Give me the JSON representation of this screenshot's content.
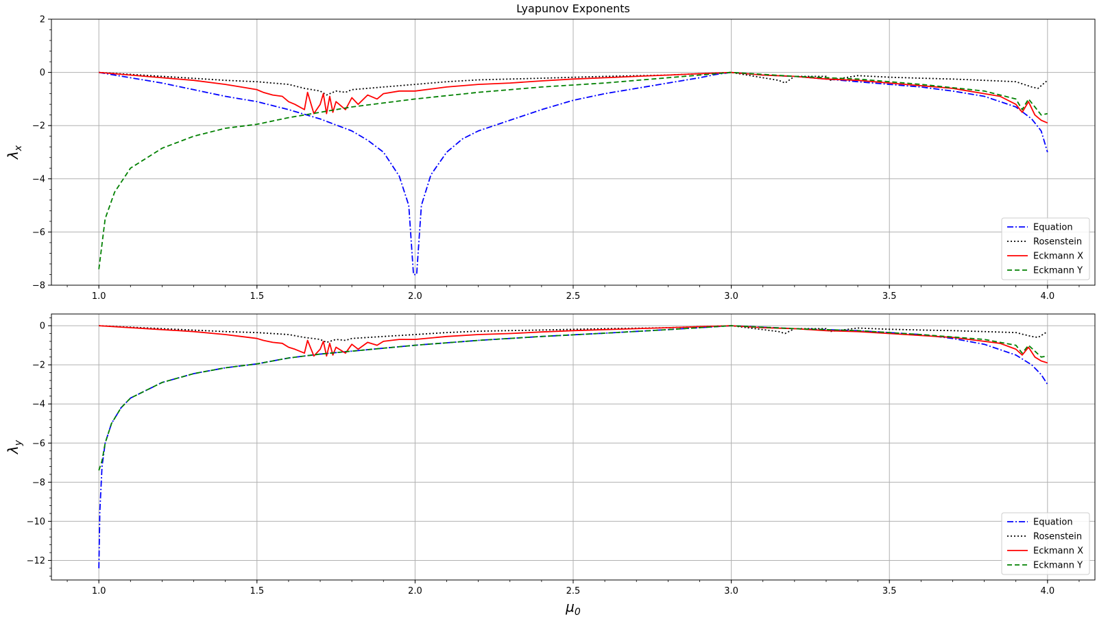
{
  "chart_data": [
    {
      "type": "line",
      "title": "Lyapunov Exponents",
      "xlabel": "",
      "ylabel": "λ",
      "ylabel_sub": "x",
      "xlim": [
        0.85,
        4.15
      ],
      "ylim": [
        -8,
        2
      ],
      "xticks": [
        1.0,
        1.5,
        2.0,
        2.5,
        3.0,
        3.5,
        4.0
      ],
      "xtick_labels": [
        "1.0",
        "1.5",
        "2.0",
        "2.5",
        "3.0",
        "3.5",
        "4.0"
      ],
      "yticks": [
        2,
        0,
        -2,
        -4,
        -6,
        -8
      ],
      "ytick_labels": [
        "2",
        "0",
        "−2",
        "−4",
        "−6",
        "−8"
      ],
      "grid": true,
      "legend_position": "lower-right",
      "series": [
        {
          "name": "Equation",
          "color": "#0000ff",
          "style": "dashdot",
          "x": [
            1.0,
            1.1,
            1.2,
            1.3,
            1.4,
            1.5,
            1.6,
            1.7,
            1.8,
            1.85,
            1.9,
            1.95,
            1.98,
            1.995,
            2.0,
            2.005,
            2.02,
            2.05,
            2.1,
            2.15,
            2.2,
            2.3,
            2.4,
            2.5,
            2.6,
            2.7,
            2.8,
            2.9,
            2.95,
            3.0,
            3.1,
            3.2,
            3.3,
            3.4,
            3.5,
            3.6,
            3.7,
            3.8,
            3.9,
            3.95,
            3.98,
            4.0
          ],
          "y": [
            0,
            -0.2,
            -0.4,
            -0.65,
            -0.9,
            -1.1,
            -1.4,
            -1.75,
            -2.2,
            -2.55,
            -3.0,
            -3.9,
            -5.0,
            -7.6,
            -7.6,
            -7.6,
            -5.0,
            -3.85,
            -3.0,
            -2.5,
            -2.2,
            -1.8,
            -1.4,
            -1.05,
            -0.8,
            -0.6,
            -0.4,
            -0.2,
            -0.08,
            0,
            -0.1,
            -0.15,
            -0.25,
            -0.35,
            -0.45,
            -0.55,
            -0.7,
            -0.9,
            -1.3,
            -1.75,
            -2.2,
            -3.0
          ]
        },
        {
          "name": "Rosenstein",
          "color": "#000000",
          "style": "dotted",
          "x": [
            1.0,
            1.2,
            1.4,
            1.5,
            1.6,
            1.65,
            1.7,
            1.72,
            1.75,
            1.78,
            1.8,
            1.9,
            2.0,
            2.1,
            2.2,
            2.4,
            2.6,
            2.8,
            3.0,
            3.1,
            3.15,
            3.17,
            3.2,
            3.3,
            3.31,
            3.4,
            3.5,
            3.6,
            3.7,
            3.8,
            3.9,
            3.95,
            3.97,
            4.0
          ],
          "y": [
            0,
            -0.15,
            -0.3,
            -0.35,
            -0.45,
            -0.6,
            -0.7,
            -0.85,
            -0.7,
            -0.75,
            -0.65,
            -0.55,
            -0.45,
            -0.35,
            -0.28,
            -0.22,
            -0.15,
            -0.1,
            0,
            -0.2,
            -0.3,
            -0.4,
            -0.15,
            -0.15,
            -0.3,
            -0.12,
            -0.18,
            -0.22,
            -0.25,
            -0.3,
            -0.35,
            -0.55,
            -0.6,
            -0.3
          ]
        },
        {
          "name": "Eckmann X",
          "color": "#ff0000",
          "style": "solid",
          "x": [
            1.0,
            1.2,
            1.3,
            1.4,
            1.45,
            1.5,
            1.52,
            1.55,
            1.58,
            1.6,
            1.62,
            1.65,
            1.66,
            1.68,
            1.7,
            1.71,
            1.72,
            1.73,
            1.74,
            1.75,
            1.78,
            1.8,
            1.82,
            1.85,
            1.88,
            1.9,
            1.95,
            2.0,
            2.1,
            2.2,
            2.3,
            2.4,
            2.5,
            2.6,
            2.7,
            2.8,
            2.9,
            3.0,
            3.1,
            3.2,
            3.3,
            3.4,
            3.5,
            3.6,
            3.7,
            3.8,
            3.85,
            3.9,
            3.92,
            3.94,
            3.96,
            3.98,
            4.0
          ],
          "y": [
            0,
            -0.2,
            -0.3,
            -0.45,
            -0.55,
            -0.65,
            -0.75,
            -0.85,
            -0.9,
            -1.1,
            -1.2,
            -1.4,
            -0.75,
            -1.55,
            -1.2,
            -0.8,
            -1.55,
            -0.9,
            -1.5,
            -1.1,
            -1.4,
            -0.95,
            -1.2,
            -0.85,
            -1.0,
            -0.8,
            -0.7,
            -0.7,
            -0.55,
            -0.45,
            -0.4,
            -0.32,
            -0.25,
            -0.2,
            -0.15,
            -0.1,
            -0.05,
            0,
            -0.1,
            -0.15,
            -0.25,
            -0.3,
            -0.4,
            -0.5,
            -0.6,
            -0.8,
            -0.9,
            -1.2,
            -1.5,
            -1.1,
            -1.6,
            -1.8,
            -1.9
          ]
        },
        {
          "name": "Eckmann Y",
          "color": "#008000",
          "style": "dashed",
          "x": [
            1.0,
            1.02,
            1.05,
            1.1,
            1.2,
            1.3,
            1.4,
            1.5,
            1.6,
            1.7,
            1.8,
            2.0,
            2.2,
            2.4,
            2.6,
            2.8,
            3.0,
            3.2,
            3.4,
            3.6,
            3.8,
            3.9,
            3.92,
            3.94,
            3.96,
            3.98,
            4.0
          ],
          "y": [
            -7.4,
            -5.5,
            -4.5,
            -3.6,
            -2.85,
            -2.4,
            -2.1,
            -1.95,
            -1.7,
            -1.5,
            -1.3,
            -1.0,
            -0.75,
            -0.55,
            -0.4,
            -0.2,
            0,
            -0.15,
            -0.25,
            -0.45,
            -0.7,
            -1.0,
            -1.4,
            -1.0,
            -1.3,
            -1.6,
            -1.55
          ]
        }
      ]
    },
    {
      "type": "line",
      "title": "",
      "xlabel": "μ",
      "xlabel_sub": "0",
      "ylabel": "λ",
      "ylabel_sub": "y",
      "xlim": [
        0.85,
        4.15
      ],
      "ylim": [
        -13,
        0.6
      ],
      "xticks": [
        1.0,
        1.5,
        2.0,
        2.5,
        3.0,
        3.5,
        4.0
      ],
      "xtick_labels": [
        "1.0",
        "1.5",
        "2.0",
        "2.5",
        "3.0",
        "3.5",
        "4.0"
      ],
      "yticks": [
        0,
        -2,
        -4,
        -6,
        -8,
        -10,
        -12
      ],
      "ytick_labels": [
        "0",
        "−2",
        "−4",
        "−6",
        "−8",
        "−10",
        "−12"
      ],
      "grid": true,
      "legend_position": "lower-right",
      "series": [
        {
          "name": "Equation",
          "color": "#0000ff",
          "style": "dashdot",
          "x": [
            1.0,
            1.003,
            1.01,
            1.02,
            1.04,
            1.07,
            1.1,
            1.2,
            1.3,
            1.4,
            1.5,
            1.6,
            1.7,
            1.8,
            2.0,
            2.2,
            2.4,
            2.6,
            2.8,
            3.0,
            3.2,
            3.4,
            3.6,
            3.7,
            3.8,
            3.9,
            3.95,
            3.98,
            4.0
          ],
          "y": [
            -12.4,
            -9.5,
            -7.2,
            -6.0,
            -5.0,
            -4.2,
            -3.7,
            -2.9,
            -2.45,
            -2.15,
            -1.95,
            -1.65,
            -1.45,
            -1.3,
            -1.0,
            -0.75,
            -0.55,
            -0.38,
            -0.2,
            0,
            -0.15,
            -0.25,
            -0.45,
            -0.65,
            -0.95,
            -1.5,
            -2.0,
            -2.5,
            -3.0
          ]
        },
        {
          "name": "Rosenstein",
          "color": "#000000",
          "style": "dotted",
          "x": [
            1.0,
            1.2,
            1.4,
            1.5,
            1.6,
            1.65,
            1.7,
            1.72,
            1.75,
            1.78,
            1.8,
            1.9,
            2.0,
            2.1,
            2.2,
            2.4,
            2.6,
            2.8,
            3.0,
            3.1,
            3.15,
            3.17,
            3.2,
            3.3,
            3.31,
            3.4,
            3.5,
            3.6,
            3.7,
            3.8,
            3.9,
            3.95,
            3.97,
            4.0
          ],
          "y": [
            0,
            -0.15,
            -0.3,
            -0.35,
            -0.45,
            -0.6,
            -0.7,
            -0.85,
            -0.7,
            -0.75,
            -0.65,
            -0.55,
            -0.45,
            -0.35,
            -0.28,
            -0.22,
            -0.15,
            -0.1,
            0,
            -0.2,
            -0.3,
            -0.4,
            -0.15,
            -0.15,
            -0.3,
            -0.12,
            -0.18,
            -0.22,
            -0.25,
            -0.3,
            -0.35,
            -0.55,
            -0.6,
            -0.3
          ]
        },
        {
          "name": "Eckmann X",
          "color": "#ff0000",
          "style": "solid",
          "x": [
            1.0,
            1.2,
            1.3,
            1.4,
            1.45,
            1.5,
            1.52,
            1.55,
            1.58,
            1.6,
            1.62,
            1.65,
            1.66,
            1.68,
            1.7,
            1.71,
            1.72,
            1.73,
            1.74,
            1.75,
            1.78,
            1.8,
            1.82,
            1.85,
            1.88,
            1.9,
            1.95,
            2.0,
            2.1,
            2.2,
            2.3,
            2.4,
            2.5,
            2.6,
            2.7,
            2.8,
            2.9,
            3.0,
            3.1,
            3.2,
            3.3,
            3.4,
            3.5,
            3.6,
            3.7,
            3.8,
            3.85,
            3.9,
            3.92,
            3.94,
            3.96,
            3.98,
            4.0
          ],
          "y": [
            0,
            -0.2,
            -0.3,
            -0.45,
            -0.55,
            -0.65,
            -0.75,
            -0.85,
            -0.9,
            -1.1,
            -1.2,
            -1.4,
            -0.75,
            -1.55,
            -1.2,
            -0.8,
            -1.55,
            -0.9,
            -1.5,
            -1.1,
            -1.4,
            -0.95,
            -1.2,
            -0.85,
            -1.0,
            -0.8,
            -0.7,
            -0.7,
            -0.55,
            -0.45,
            -0.4,
            -0.32,
            -0.25,
            -0.2,
            -0.15,
            -0.1,
            -0.05,
            0,
            -0.1,
            -0.15,
            -0.25,
            -0.3,
            -0.4,
            -0.5,
            -0.6,
            -0.8,
            -0.9,
            -1.2,
            -1.5,
            -1.1,
            -1.6,
            -1.8,
            -1.9
          ]
        },
        {
          "name": "Eckmann Y",
          "color": "#008000",
          "style": "dashed",
          "x": [
            1.0,
            1.01,
            1.02,
            1.04,
            1.07,
            1.1,
            1.2,
            1.3,
            1.4,
            1.5,
            1.6,
            1.7,
            1.8,
            2.0,
            2.2,
            2.4,
            2.6,
            2.8,
            3.0,
            3.2,
            3.4,
            3.6,
            3.8,
            3.9,
            3.92,
            3.94,
            3.96,
            3.98,
            4.0
          ],
          "y": [
            -7.4,
            -6.9,
            -6.0,
            -5.0,
            -4.2,
            -3.7,
            -2.9,
            -2.45,
            -2.15,
            -1.95,
            -1.65,
            -1.45,
            -1.3,
            -1.0,
            -0.75,
            -0.55,
            -0.38,
            -0.2,
            0,
            -0.15,
            -0.25,
            -0.45,
            -0.7,
            -1.0,
            -1.4,
            -1.0,
            -1.3,
            -1.6,
            -1.55
          ]
        }
      ]
    }
  ]
}
